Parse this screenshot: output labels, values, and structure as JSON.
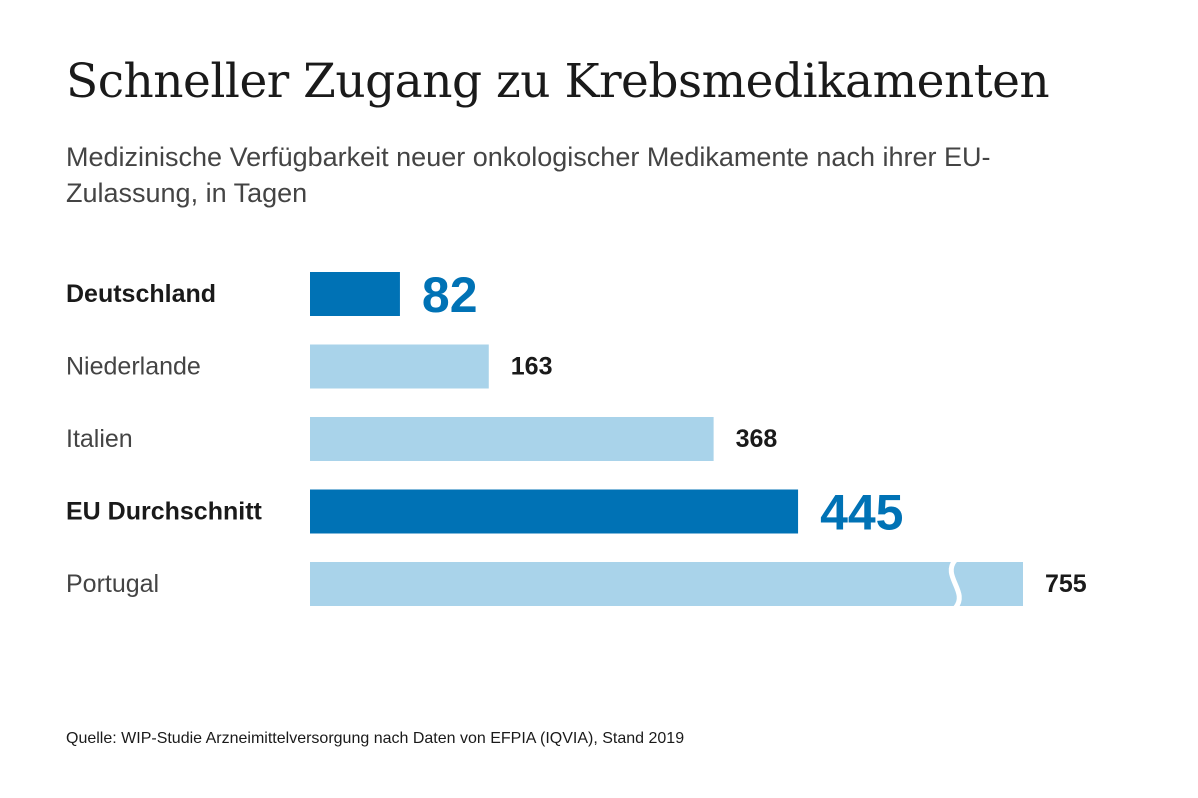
{
  "chart_data": {
    "type": "bar",
    "orientation": "horizontal",
    "title": "Schneller Zugang zu Krebsmedikamenten",
    "subtitle": "Medizinische Verfügbarkeit neuer onkologischer Medikamente nach ihrer EU-Zulassung, in Tagen",
    "categories": [
      "Deutschland",
      "Niederlande",
      "Italien",
      "EU Durchschnitt",
      "Portugal"
    ],
    "values": [
      82,
      163,
      368,
      445,
      755
    ],
    "labels": [
      "82",
      "163",
      "368",
      "445",
      "755"
    ],
    "highlighted": [
      true,
      false,
      false,
      true,
      false
    ],
    "axis_break": [
      false,
      false,
      false,
      false,
      true
    ],
    "colors": {
      "highlight": "#0072b5",
      "normal": "#a9d3ea",
      "highlight_text": "#0072b5",
      "normal_text": "#1a1a1a"
    },
    "grid": false,
    "legend": "none"
  },
  "source": "Quelle: WIP-Studie Arzneimittelversorgung nach Daten von EFPIA (IQVIA), Stand 2019"
}
